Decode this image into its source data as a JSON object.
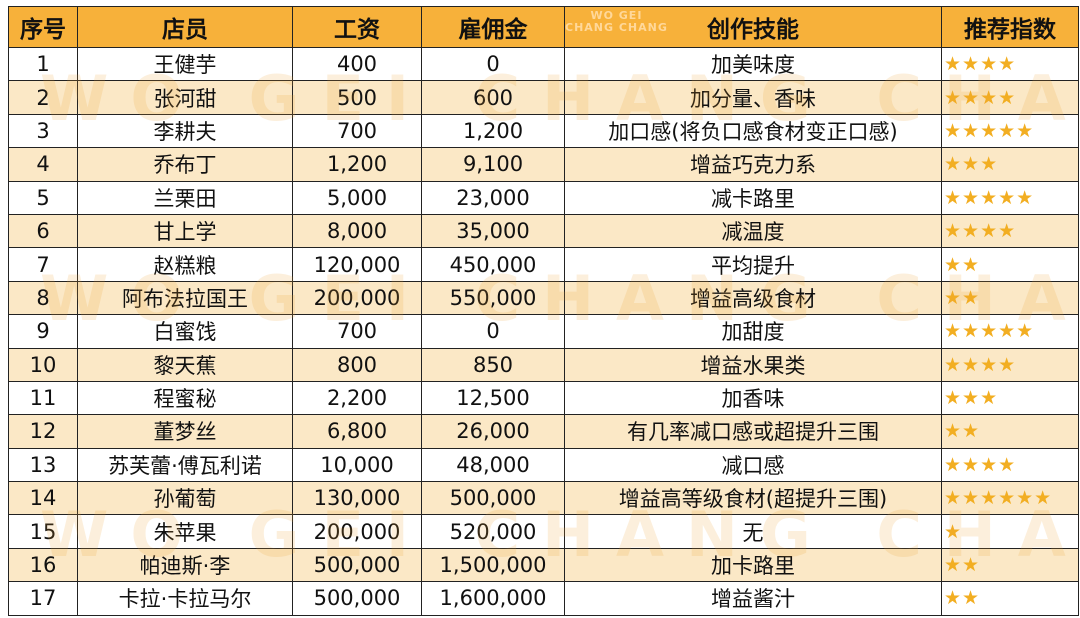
{
  "table": {
    "header": [
      "序号",
      "店员",
      "工资",
      "雇佣金",
      "创作技能",
      "推荐指数"
    ],
    "rows": [
      [
        1,
        "王健芋",
        "400",
        "0",
        "加美味度",
        "★★★★"
      ],
      [
        2,
        "张河甜",
        "500",
        "600",
        "加分量、香味",
        "★★★★"
      ],
      [
        3,
        "李耕夫",
        "700",
        "1,200",
        "加口感(将负口感食材变正口感)",
        "★★★★★"
      ],
      [
        4,
        "乔布丁",
        "1,200",
        "9,100",
        "增益巧克力系",
        "★★★"
      ],
      [
        5,
        "兰栗田",
        "5,000",
        "23,000",
        "减卡路里",
        "★★★★★"
      ],
      [
        6,
        "甘上学",
        "8,000",
        "35,000",
        "减温度",
        "★★★★"
      ],
      [
        7,
        "赵糕粮",
        "120,000",
        "450,000",
        "平均提升",
        "★★"
      ],
      [
        8,
        "阿布法拉国王",
        "200,000",
        "550,000",
        "增益高级食材",
        "★★"
      ],
      [
        9,
        "白蜜饯",
        "700",
        "0",
        "加甜度",
        "★★★★★"
      ],
      [
        10,
        "黎天蕉",
        "800",
        "850",
        "增益水果类",
        "★★★★"
      ],
      [
        11,
        "程蜜秘",
        "2,200",
        "12,500",
        "加香味",
        "★★★"
      ],
      [
        12,
        "董梦丝",
        "6,800",
        "26,000",
        "有几率减口感或超提升三围",
        "★★"
      ],
      [
        13,
        "苏芙蕾·傅瓦利诺",
        "10,000",
        "48,000",
        "减口感",
        "★★★★"
      ],
      [
        14,
        "孙葡萄",
        "130,000",
        "500,000",
        "增益高等级食材(超提升三围)",
        "★★★★★★"
      ],
      [
        15,
        "朱苹果",
        "200,000",
        "520,000",
        "无",
        "★"
      ],
      [
        16,
        "帕迪斯·李",
        "500,000",
        "1,500,000",
        "加卡路里",
        "★★"
      ],
      [
        17,
        "卡拉·卡拉马尔",
        "500,000",
        "1,600,000",
        "增益酱汁",
        "★★"
      ]
    ]
  },
  "watermark": {
    "line1": "WO GEI",
    "line2": "CHANG CHANG"
  }
}
